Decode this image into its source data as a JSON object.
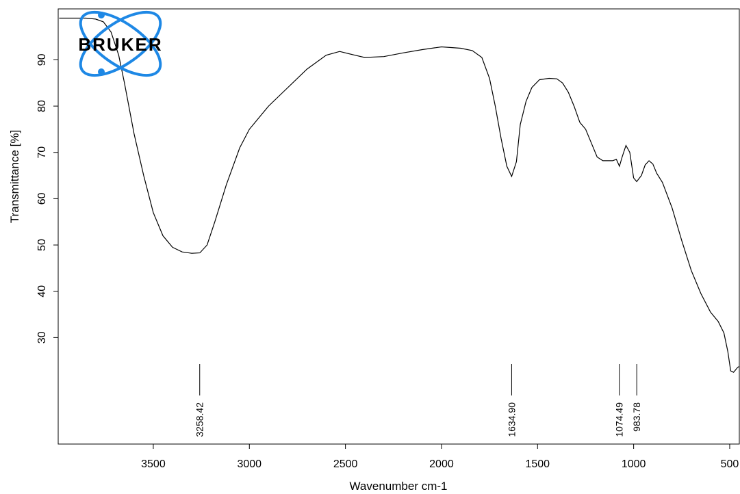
{
  "logo": {
    "text": "BRUKER",
    "color": "#1e88e5"
  },
  "chart_data": {
    "type": "line",
    "xlabel": "Wavenumber cm-1",
    "ylabel": "Transmittance [%]",
    "x_reversed": true,
    "xlim": [
      3995,
      450
    ],
    "ylim": [
      7,
      101
    ],
    "x_ticks": [
      3500,
      3000,
      2500,
      2000,
      1500,
      1000,
      500
    ],
    "y_ticks": [
      30,
      40,
      50,
      60,
      70,
      80,
      90
    ],
    "line_color": "#000000",
    "series": [
      {
        "points": [
          [
            3990,
            99
          ],
          [
            3900,
            99
          ],
          [
            3850,
            99
          ],
          [
            3800,
            98.8
          ],
          [
            3760,
            98.2
          ],
          [
            3720,
            96
          ],
          [
            3680,
            91
          ],
          [
            3650,
            85
          ],
          [
            3600,
            74
          ],
          [
            3550,
            65
          ],
          [
            3500,
            57
          ],
          [
            3450,
            52
          ],
          [
            3400,
            49.5
          ],
          [
            3350,
            48.5
          ],
          [
            3300,
            48.2
          ],
          [
            3258,
            48.3
          ],
          [
            3220,
            50
          ],
          [
            3180,
            55
          ],
          [
            3120,
            63
          ],
          [
            3050,
            71
          ],
          [
            3000,
            75
          ],
          [
            2900,
            80
          ],
          [
            2800,
            84
          ],
          [
            2700,
            88
          ],
          [
            2600,
            91
          ],
          [
            2530,
            91.8
          ],
          [
            2450,
            91
          ],
          [
            2400,
            90.5
          ],
          [
            2300,
            90.7
          ],
          [
            2200,
            91.5
          ],
          [
            2100,
            92.2
          ],
          [
            2000,
            92.8
          ],
          [
            1900,
            92.5
          ],
          [
            1840,
            92
          ],
          [
            1790,
            90.5
          ],
          [
            1750,
            86
          ],
          [
            1720,
            80
          ],
          [
            1690,
            73
          ],
          [
            1660,
            67
          ],
          [
            1635,
            64.8
          ],
          [
            1610,
            68
          ],
          [
            1590,
            76
          ],
          [
            1560,
            81
          ],
          [
            1530,
            84
          ],
          [
            1490,
            85.7
          ],
          [
            1440,
            86
          ],
          [
            1400,
            85.9
          ],
          [
            1370,
            85
          ],
          [
            1340,
            83
          ],
          [
            1310,
            80
          ],
          [
            1280,
            76.5
          ],
          [
            1250,
            75
          ],
          [
            1220,
            72
          ],
          [
            1190,
            69
          ],
          [
            1160,
            68.2
          ],
          [
            1110,
            68.2
          ],
          [
            1090,
            68.5
          ],
          [
            1074,
            67
          ],
          [
            1060,
            69
          ],
          [
            1040,
            71.5
          ],
          [
            1020,
            70
          ],
          [
            1000,
            64.5
          ],
          [
            984,
            63.7
          ],
          [
            960,
            65
          ],
          [
            940,
            67.3
          ],
          [
            920,
            68.2
          ],
          [
            900,
            67.5
          ],
          [
            880,
            65.5
          ],
          [
            850,
            63.5
          ],
          [
            800,
            58
          ],
          [
            750,
            51
          ],
          [
            700,
            44.5
          ],
          [
            650,
            39.5
          ],
          [
            600,
            35.5
          ],
          [
            560,
            33.5
          ],
          [
            530,
            31
          ],
          [
            510,
            27
          ],
          [
            495,
            22.8
          ],
          [
            480,
            22.5
          ],
          [
            460,
            23.5
          ],
          [
            450,
            23.8
          ]
        ]
      }
    ],
    "peaks": [
      {
        "x": 3258.42,
        "label": "3258.42"
      },
      {
        "x": 1634.9,
        "label": "1634.90"
      },
      {
        "x": 1074.49,
        "label": "1074.49"
      },
      {
        "x": 983.78,
        "label": "983.78"
      }
    ]
  }
}
